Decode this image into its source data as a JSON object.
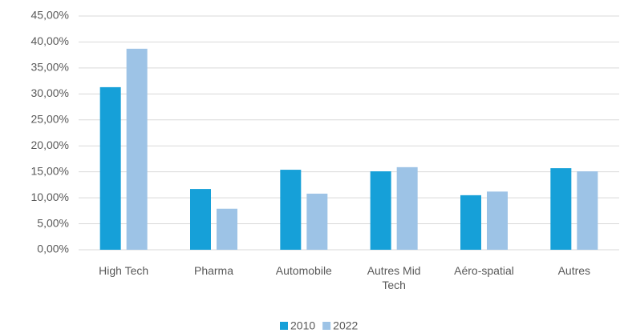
{
  "chart_data": {
    "type": "bar",
    "categories": [
      "High Tech",
      "Pharma",
      "Automobile",
      "Autres Mid Tech",
      "Aéro-spatial",
      "Autres"
    ],
    "series": [
      {
        "name": "2010",
        "color": "#16a0d8",
        "values": [
          31.3,
          11.7,
          15.4,
          15.1,
          10.5,
          15.7
        ]
      },
      {
        "name": "2022",
        "color": "#9dc3e6",
        "values": [
          38.7,
          7.9,
          10.8,
          15.9,
          11.2,
          15.1
        ]
      }
    ],
    "ylim": [
      0,
      45
    ],
    "yticks": [
      {
        "value": 0,
        "label": "0,00%"
      },
      {
        "value": 5,
        "label": "5,00%"
      },
      {
        "value": 10,
        "label": "10,00%"
      },
      {
        "value": 15,
        "label": "15,00%"
      },
      {
        "value": 20,
        "label": "20,00%"
      },
      {
        "value": 25,
        "label": "25,00%"
      },
      {
        "value": 30,
        "label": "30,00%"
      },
      {
        "value": 35,
        "label": "35,00%"
      },
      {
        "value": 40,
        "label": "40,00%"
      },
      {
        "value": 45,
        "label": "45,00%"
      }
    ],
    "grid": true,
    "legend": "bottom"
  }
}
